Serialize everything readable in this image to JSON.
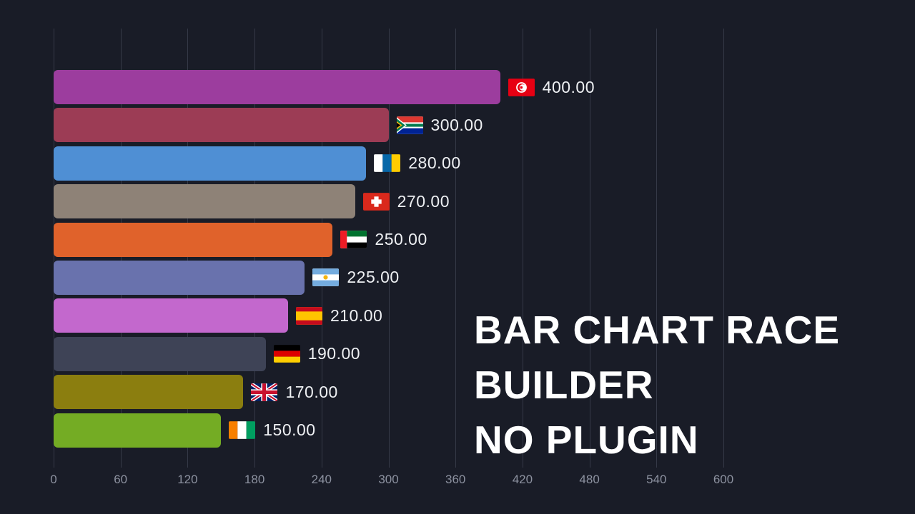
{
  "background_color": "#191c27",
  "gridline_color": "#353947",
  "axis_text_color": "#8d92a0",
  "chart_data": {
    "type": "bar",
    "orientation": "horizontal",
    "title": "",
    "xlabel": "",
    "ylabel": "",
    "xlim": [
      0,
      600
    ],
    "grid": true,
    "x_ticks": [
      "0",
      "60",
      "120",
      "180",
      "240",
      "300",
      "360",
      "420",
      "480",
      "540",
      "600"
    ],
    "bars": [
      {
        "flag": "tunisia",
        "value": 400,
        "label": "400.00",
        "color": "#9c3d9e"
      },
      {
        "flag": "south-africa",
        "value": 300,
        "label": "300.00",
        "color": "#9c3c55"
      },
      {
        "flag": "canary-islands",
        "value": 280,
        "label": "280.00",
        "color": "#4f8fd4"
      },
      {
        "flag": "switzerland",
        "value": 270,
        "label": "270.00",
        "color": "#8e8277"
      },
      {
        "flag": "uae",
        "value": 250,
        "label": "250.00",
        "color": "#e0622b"
      },
      {
        "flag": "argentina",
        "value": 225,
        "label": "225.00",
        "color": "#6972ad"
      },
      {
        "flag": "spain",
        "value": 210,
        "label": "210.00",
        "color": "#c368cd"
      },
      {
        "flag": "germany",
        "value": 190,
        "label": "190.00",
        "color": "#3e4356"
      },
      {
        "flag": "united-kingdom",
        "value": 170,
        "label": "170.00",
        "color": "#8b7e0f"
      },
      {
        "flag": "ivory-coast",
        "value": 150,
        "label": "150.00",
        "color": "#74ac24"
      }
    ]
  },
  "overlay": {
    "lines": [
      "BAR CHART RACE",
      "BUILDER",
      "NO PLUGIN"
    ]
  }
}
